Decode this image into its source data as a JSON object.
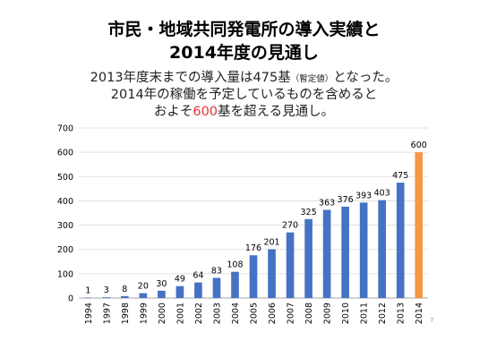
{
  "slide": {
    "title_line1": "市民・地域共同発電所の導入実績と",
    "title_line2": "2014年度の見通し",
    "subtitle_line1_part1": "2013年度末までの導入量は475基",
    "subtitle_line1_small": "（暫定値）",
    "subtitle_line1_part2": "となった。",
    "subtitle_line2": "2014年の稼働を予定しているものを含めると",
    "subtitle_line3_part1": "およそ",
    "subtitle_line3_highlight": "600",
    "subtitle_line3_part2": "基を超える見通し。",
    "page_number": "7"
  },
  "colors": {
    "bar": "#4472c4",
    "bar_highlight": "#f79646",
    "highlight_text": "#e8303a",
    "grid": "#d9d9d9"
  },
  "chart_data": {
    "type": "bar",
    "categories": [
      "1994",
      "1997",
      "1998",
      "1999",
      "2000",
      "2001",
      "2002",
      "2003",
      "2004",
      "2005",
      "2006",
      "2007",
      "2008",
      "2009",
      "2010",
      "2011",
      "2012",
      "2013",
      "2014"
    ],
    "values": [
      1,
      3,
      8,
      20,
      30,
      49,
      64,
      83,
      108,
      176,
      201,
      270,
      325,
      363,
      376,
      393,
      403,
      475,
      600
    ],
    "highlight_index": 18,
    "ylim": [
      0,
      700
    ],
    "yticks": [
      0,
      100,
      200,
      300,
      400,
      500,
      600,
      700
    ],
    "grid": true,
    "title": "",
    "xlabel": "",
    "ylabel": ""
  }
}
